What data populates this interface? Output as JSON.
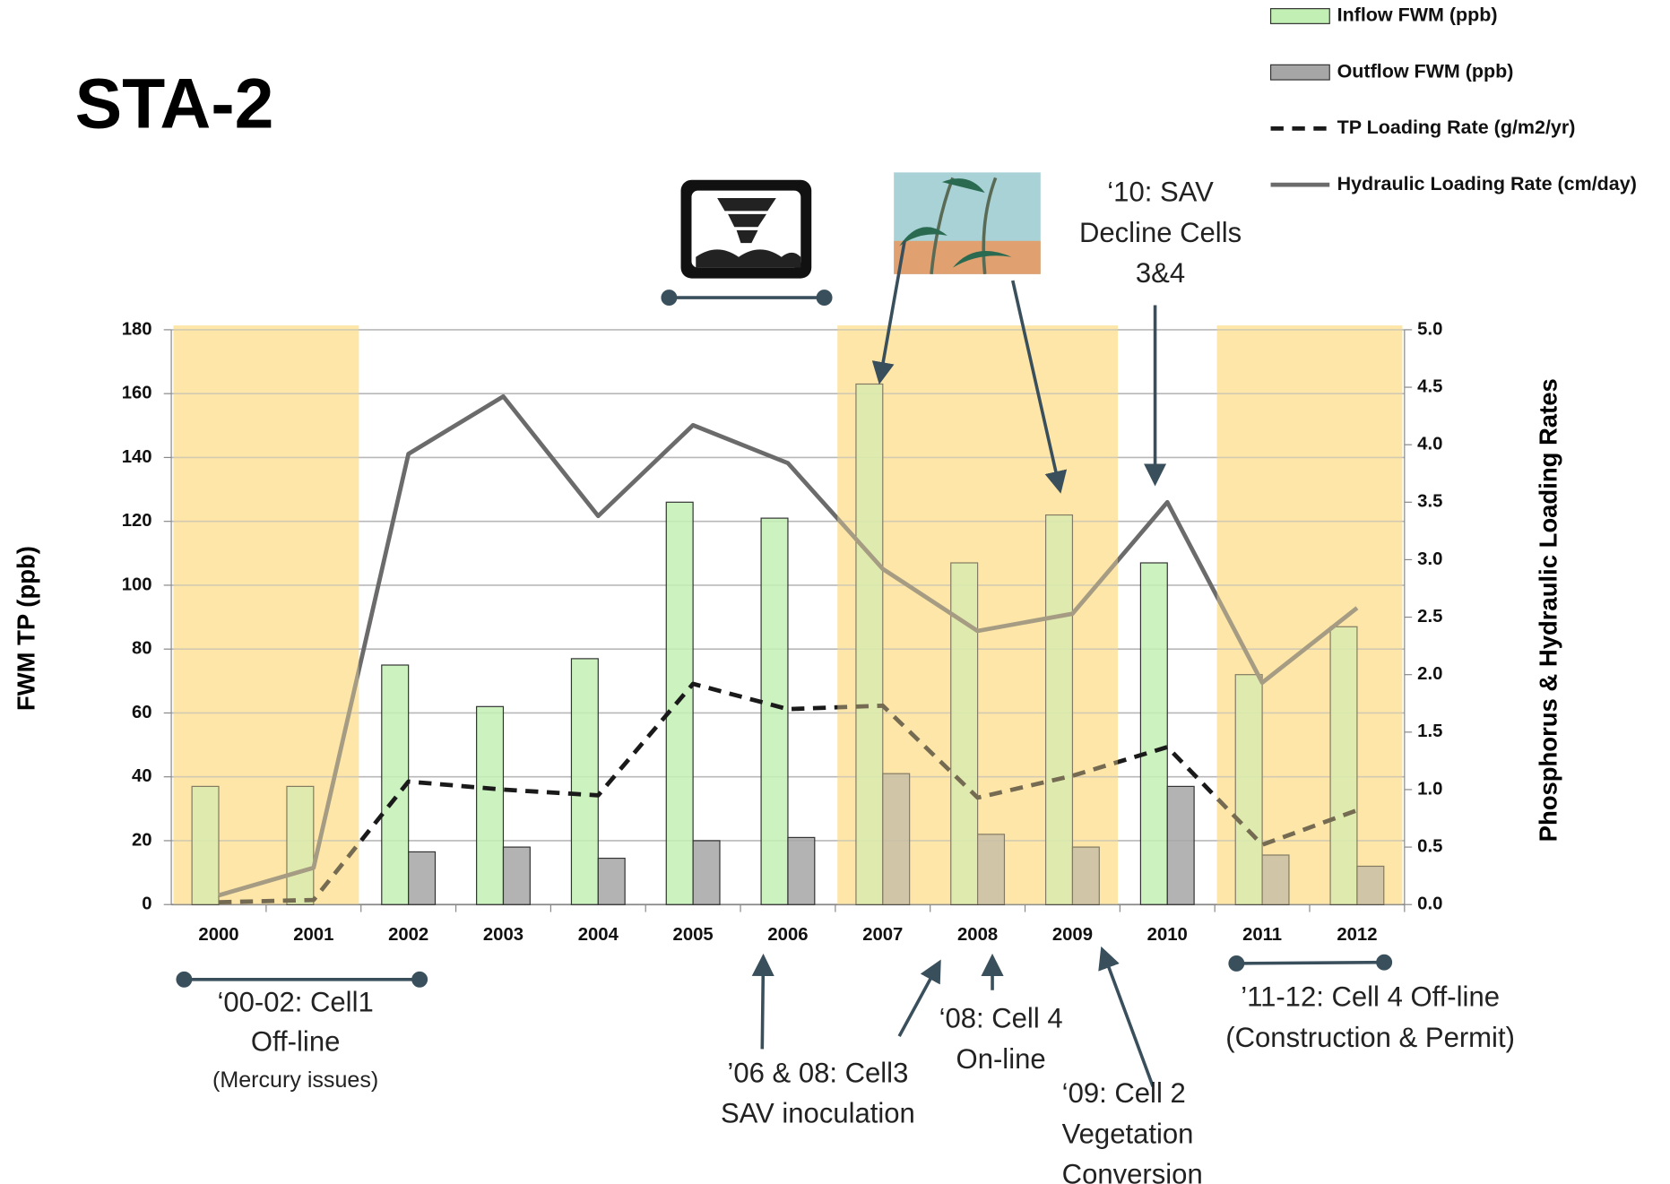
{
  "chart_data": {
    "type": "bar",
    "title": "STA-2",
    "y_axis_label": "FWM TP (ppb)",
    "y2_axis_label": "Phosphorus & Hydraulic Loading Rates",
    "categories": [
      "2000",
      "2001",
      "2002",
      "2003",
      "2004",
      "2005",
      "2006",
      "2007",
      "2008",
      "2009",
      "2010",
      "2011",
      "2012"
    ],
    "series": [
      {
        "name": "Inflow FWM (ppb)",
        "type": "bar",
        "color": "#c2f0b4",
        "values": [
          37,
          37,
          75,
          62,
          77,
          126,
          121,
          163,
          107,
          122,
          107,
          72,
          87
        ]
      },
      {
        "name": "Outflow FWM (ppb)",
        "type": "bar",
        "color": "#a6a6a6",
        "values": [
          null,
          null,
          16.5,
          18,
          14.5,
          20,
          21,
          41,
          22,
          18,
          37,
          15.5,
          12
        ]
      },
      {
        "name": "TP Loading Rate (g/m2/yr)",
        "type": "line",
        "style": "dashed",
        "axis": "y2",
        "color": "#1a1a1a",
        "values": [
          0.02,
          0.04,
          1.07,
          1.0,
          0.95,
          1.92,
          1.7,
          1.73,
          0.93,
          1.12,
          1.37,
          0.52,
          0.82
        ]
      },
      {
        "name": "Hydraulic Loading Rate (cm/day)",
        "type": "line",
        "style": "solid",
        "axis": "y2",
        "color": "#6b6b6b",
        "values": [
          0.08,
          0.32,
          3.92,
          4.42,
          3.38,
          4.17,
          3.84,
          2.92,
          2.38,
          2.53,
          3.5,
          1.93,
          2.58
        ]
      }
    ],
    "ylim": [
      0,
      180
    ],
    "yticks": [
      0,
      20,
      40,
      60,
      80,
      100,
      120,
      140,
      160,
      180
    ],
    "y2lim": [
      0,
      5
    ],
    "y2ticks": [
      {
        "value": 0,
        "label": "0.0"
      },
      0.5,
      {
        "value": 1,
        "label": "1.0"
      },
      1.5,
      {
        "value": 2,
        "label": "2.0"
      },
      2.5,
      {
        "value": 3,
        "label": "3.0"
      },
      3.5,
      {
        "value": 4,
        "label": "4.0"
      },
      4.5,
      {
        "value": 5,
        "label": "5.0"
      }
    ],
    "grid": true,
    "legend": "top-right",
    "highlight_periods": [
      [
        "2000",
        "2001"
      ],
      [
        "2007",
        "2009"
      ],
      [
        "2011",
        "2012"
      ]
    ],
    "highlight_color": "#fde7a8",
    "annotations": [
      {
        "lines": [
          "‘00-02: Cell1",
          "Off-line",
          "(Mercury issues)"
        ]
      },
      {
        "lines": [
          "’06 & 08: Cell3",
          "SAV inoculation"
        ]
      },
      {
        "lines": [
          "‘08: Cell 4",
          "On-line"
        ]
      },
      {
        "lines": [
          "‘09: Cell 2",
          "Vegetation",
          "Conversion"
        ]
      },
      {
        "lines": [
          "’11-12: Cell 4 Off-line",
          "(Construction & Permit)"
        ]
      },
      {
        "lines": [
          "‘10: SAV",
          "Decline Cells",
          "3&4"
        ]
      }
    ]
  }
}
